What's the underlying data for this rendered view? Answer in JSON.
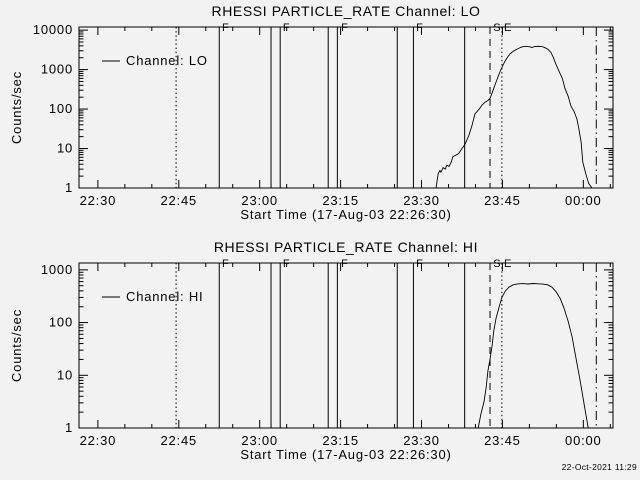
{
  "page": {
    "background": "#f2f2f2",
    "foreground": "#000000",
    "timestamp": "22-Oct-2021 11:29"
  },
  "chart_data": [
    {
      "type": "line",
      "title": "RHESSI PARTICLE_RATE Channel: LO",
      "xlabel": "Start Time (17-Aug-03 22:26:30)",
      "ylabel": "Counts/sec",
      "legend": {
        "label": "Channel: LO",
        "position": "upper-left"
      },
      "grid": false,
      "x_axis": {
        "unit": "minutes since 22:26:30",
        "lim": [
          0,
          99
        ],
        "ticks": [
          {
            "t": 3.5,
            "label": "22:30"
          },
          {
            "t": 18.5,
            "label": "22:45"
          },
          {
            "t": 33.5,
            "label": "23:00"
          },
          {
            "t": 48.5,
            "label": "23:15"
          },
          {
            "t": 63.5,
            "label": "23:30"
          },
          {
            "t": 78.5,
            "label": "23:45"
          },
          {
            "t": 93.5,
            "label": "00:00"
          }
        ],
        "minor_step_minutes": 5
      },
      "y_axis": {
        "scale": "log",
        "lim": [
          1,
          12000
        ],
        "ticks": [
          {
            "v": 1,
            "label": "1"
          },
          {
            "v": 10,
            "label": "10"
          },
          {
            "v": 100,
            "label": "100"
          },
          {
            "v": 1000,
            "label": "1000"
          },
          {
            "v": 10000,
            "label": "10000"
          }
        ]
      },
      "event_markers": [
        {
          "t": 18.0,
          "style": "dotted",
          "label": ""
        },
        {
          "t": 26.0,
          "style": "solid",
          "label": "F",
          "label_t": 26.5
        },
        {
          "t": 35.6,
          "style": "solid",
          "label": ""
        },
        {
          "t": 37.3,
          "style": "solid",
          "label": "F",
          "label_t": 37.8
        },
        {
          "t": 46.2,
          "style": "solid",
          "label": ""
        },
        {
          "t": 47.9,
          "style": "solid",
          "label": "F",
          "label_t": 48.6
        },
        {
          "t": 59.0,
          "style": "solid",
          "label": ""
        },
        {
          "t": 62.0,
          "style": "solid",
          "label": "F",
          "label_t": 62.5
        },
        {
          "t": 71.5,
          "style": "solid",
          "label": ""
        },
        {
          "t": 76.2,
          "style": "dashed",
          "label": "S",
          "label_t": 76.8
        },
        {
          "t": 78.4,
          "style": "dotted",
          "label": "E",
          "label_t": 78.8
        },
        {
          "t": 95.9,
          "style": "dashdot",
          "label": ""
        }
      ],
      "series": [
        {
          "name": "Channel: LO",
          "points": [
            [
              66.2,
              1
            ],
            [
              66.4,
              1.6
            ],
            [
              66.6,
              2.3
            ],
            [
              66.9,
              2.8
            ],
            [
              67.1,
              2.5
            ],
            [
              67.5,
              3.3
            ],
            [
              67.9,
              3.0
            ],
            [
              68.2,
              3.8
            ],
            [
              68.6,
              3.5
            ],
            [
              69.0,
              4.5
            ],
            [
              69.3,
              6.2
            ],
            [
              69.9,
              6.8
            ],
            [
              70.4,
              7.5
            ],
            [
              71.0,
              10
            ],
            [
              71.6,
              13
            ],
            [
              72.3,
              22
            ],
            [
              72.9,
              40
            ],
            [
              73.4,
              75
            ],
            [
              74.2,
              100
            ],
            [
              74.7,
              125
            ],
            [
              75.3,
              150
            ],
            [
              75.8,
              165
            ],
            [
              76.2,
              185
            ],
            [
              76.6,
              260
            ],
            [
              76.9,
              340
            ],
            [
              77.5,
              560
            ],
            [
              78.1,
              920
            ],
            [
              78.6,
              1300
            ],
            [
              79.0,
              1650
            ],
            [
              79.5,
              2100
            ],
            [
              79.9,
              2500
            ],
            [
              80.5,
              2900
            ],
            [
              81.2,
              3300
            ],
            [
              81.8,
              3600
            ],
            [
              82.3,
              3800
            ],
            [
              82.9,
              3900
            ],
            [
              83.4,
              3800
            ],
            [
              84.0,
              3650
            ],
            [
              84.5,
              3850
            ],
            [
              85.1,
              3900
            ],
            [
              85.7,
              3850
            ],
            [
              86.2,
              3700
            ],
            [
              86.9,
              3300
            ],
            [
              87.5,
              2700
            ],
            [
              87.9,
              2100
            ],
            [
              88.4,
              1400
            ],
            [
              89.0,
              900
            ],
            [
              89.6,
              600
            ],
            [
              90.1,
              330
            ],
            [
              90.7,
              210
            ],
            [
              91.2,
              120
            ],
            [
              91.8,
              85
            ],
            [
              92.3,
              56
            ],
            [
              92.7,
              30
            ],
            [
              93.1,
              14
            ],
            [
              93.4,
              4.5
            ],
            [
              94.0,
              2.2
            ],
            [
              94.5,
              1.3
            ],
            [
              95.1,
              1
            ]
          ]
        }
      ]
    },
    {
      "type": "line",
      "title": "RHESSI PARTICLE_RATE Channel: HI",
      "xlabel": "Start Time (17-Aug-03 22:26:30)",
      "ylabel": "Counts/sec",
      "legend": {
        "label": "Channel: HI",
        "position": "upper-left"
      },
      "grid": false,
      "x_axis": {
        "unit": "minutes since 22:26:30",
        "lim": [
          0,
          99
        ],
        "ticks": [
          {
            "t": 3.5,
            "label": "22:30"
          },
          {
            "t": 18.5,
            "label": "22:45"
          },
          {
            "t": 33.5,
            "label": "23:00"
          },
          {
            "t": 48.5,
            "label": "23:15"
          },
          {
            "t": 63.5,
            "label": "23:30"
          },
          {
            "t": 78.5,
            "label": "23:45"
          },
          {
            "t": 93.5,
            "label": "00:00"
          }
        ],
        "minor_step_minutes": 5
      },
      "y_axis": {
        "scale": "log",
        "lim": [
          1,
          1350
        ],
        "ticks": [
          {
            "v": 1,
            "label": "1"
          },
          {
            "v": 10,
            "label": "10"
          },
          {
            "v": 100,
            "label": "100"
          },
          {
            "v": 1000,
            "label": "1000"
          }
        ]
      },
      "event_markers": [
        {
          "t": 18.0,
          "style": "dotted",
          "label": ""
        },
        {
          "t": 26.0,
          "style": "solid",
          "label": "F",
          "label_t": 26.5
        },
        {
          "t": 35.6,
          "style": "solid",
          "label": ""
        },
        {
          "t": 37.3,
          "style": "solid",
          "label": "F",
          "label_t": 37.8
        },
        {
          "t": 46.2,
          "style": "solid",
          "label": ""
        },
        {
          "t": 47.9,
          "style": "solid",
          "label": "F",
          "label_t": 48.6
        },
        {
          "t": 59.0,
          "style": "solid",
          "label": ""
        },
        {
          "t": 62.0,
          "style": "solid",
          "label": "F",
          "label_t": 62.5
        },
        {
          "t": 71.5,
          "style": "solid",
          "label": ""
        },
        {
          "t": 76.2,
          "style": "dashed",
          "label": "S",
          "label_t": 76.8
        },
        {
          "t": 78.4,
          "style": "dotted",
          "label": "E",
          "label_t": 78.8
        },
        {
          "t": 95.9,
          "style": "dashdot",
          "label": ""
        }
      ],
      "series": [
        {
          "name": "Channel: HI",
          "points": [
            [
              74.0,
              1
            ],
            [
              74.5,
              1.8
            ],
            [
              75.1,
              3.2
            ],
            [
              75.5,
              6
            ],
            [
              75.8,
              12
            ],
            [
              76.2,
              20
            ],
            [
              76.6,
              38
            ],
            [
              76.9,
              70
            ],
            [
              77.3,
              120
            ],
            [
              77.9,
              200
            ],
            [
              78.4,
              300
            ],
            [
              79.0,
              390
            ],
            [
              79.7,
              470
            ],
            [
              80.5,
              520
            ],
            [
              81.4,
              545
            ],
            [
              82.3,
              550
            ],
            [
              83.2,
              540
            ],
            [
              84.2,
              552
            ],
            [
              85.1,
              545
            ],
            [
              86.0,
              538
            ],
            [
              86.9,
              520
            ],
            [
              87.7,
              470
            ],
            [
              88.4,
              390
            ],
            [
              89.2,
              290
            ],
            [
              89.9,
              190
            ],
            [
              90.7,
              105
            ],
            [
              91.4,
              55
            ],
            [
              92.1,
              22
            ],
            [
              92.9,
              8
            ],
            [
              93.6,
              3
            ],
            [
              94.4,
              1
            ]
          ]
        }
      ]
    }
  ]
}
